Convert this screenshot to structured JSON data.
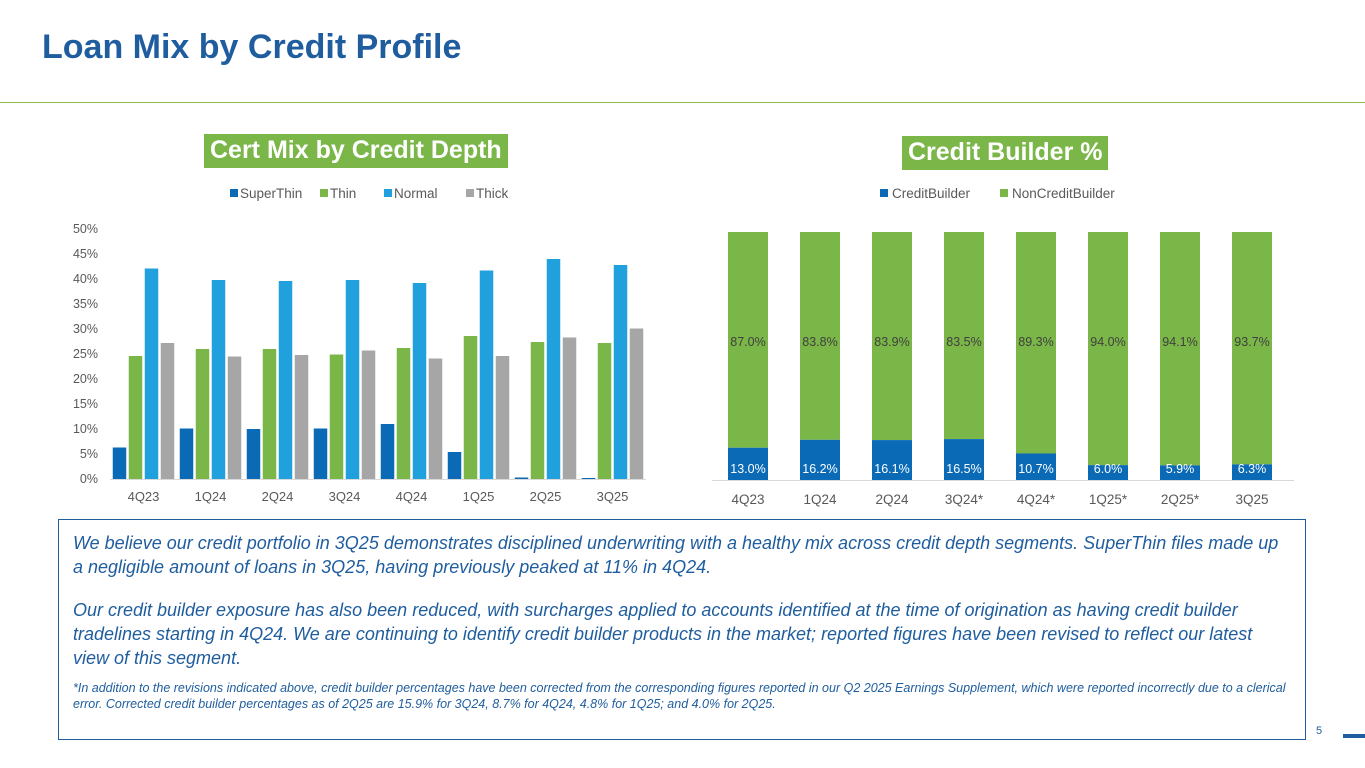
{
  "page": {
    "title": "Loan Mix by Credit Profile",
    "page_number": "5"
  },
  "badges": {
    "left": "Cert Mix by Credit Depth",
    "right": "Credit Builder %"
  },
  "colors": {
    "title": "#1f5d9e",
    "badge_bg": "#7ab648",
    "superthin": "#0a6ab6",
    "thin": "#7ab648",
    "normal": "#21a0de",
    "thick": "#a6a6a6",
    "creditbuilder": "#0a6ab6",
    "noncreditbuilder": "#7ab648"
  },
  "chart_data": [
    {
      "type": "bar",
      "title": "Cert Mix by Credit Depth",
      "categories": [
        "4Q23",
        "1Q24",
        "2Q24",
        "3Q24",
        "4Q24",
        "1Q25",
        "2Q25",
        "3Q25"
      ],
      "series": [
        {
          "name": "SuperThin",
          "values": [
            6.3,
            10.1,
            10.0,
            10.1,
            11.0,
            5.4,
            0.3,
            0.2
          ]
        },
        {
          "name": "Thin",
          "values": [
            24.6,
            26.0,
            26.0,
            24.9,
            26.2,
            28.6,
            27.4,
            27.2
          ]
        },
        {
          "name": "Normal",
          "values": [
            42.1,
            39.8,
            39.6,
            39.8,
            39.2,
            41.7,
            44.0,
            42.8
          ]
        },
        {
          "name": "Thick",
          "values": [
            27.2,
            24.5,
            24.8,
            25.7,
            24.1,
            24.6,
            28.3,
            30.1
          ]
        }
      ],
      "yticks": [
        "0%",
        "5%",
        "10%",
        "15%",
        "20%",
        "25%",
        "30%",
        "35%",
        "40%",
        "45%",
        "50%"
      ],
      "ylim": [
        0,
        50
      ],
      "legend": "top",
      "xlabel": "",
      "ylabel": ""
    },
    {
      "type": "stacked_bar",
      "title": "Credit Builder %",
      "categories": [
        "4Q23",
        "1Q24",
        "2Q24",
        "3Q24*",
        "4Q24*",
        "1Q25*",
        "2Q25*",
        "3Q25"
      ],
      "series": [
        {
          "name": "CreditBuilder",
          "values": [
            13.0,
            16.2,
            16.1,
            16.5,
            10.7,
            6.0,
            5.9,
            6.3
          ],
          "labels": [
            "13.0%",
            "16.2%",
            "16.1%",
            "16.5%",
            "10.7%",
            "6.0%",
            "5.9%",
            "6.3%"
          ]
        },
        {
          "name": "NonCreditBuilder",
          "values": [
            87.0,
            83.8,
            83.9,
            83.5,
            89.3,
            94.0,
            94.1,
            93.7
          ],
          "labels": [
            "87.0%",
            "83.8%",
            "83.9%",
            "83.5%",
            "89.3%",
            "94.0%",
            "94.1%",
            "93.7%"
          ]
        }
      ],
      "ylim": [
        0,
        100
      ],
      "legend": "top"
    }
  ],
  "textbox": {
    "p1": "We believe our credit portfolio in 3Q25 demonstrates disciplined underwriting with a healthy mix across credit depth segments. SuperThin files made up a negligible amount of loans in 3Q25, having previously peaked at 11% in 4Q24.",
    "p2": "Our credit builder exposure has also been reduced, with surcharges applied to accounts identified at the time of origination as having credit builder tradelines starting in 4Q24. We are continuing to identify credit builder products in the market; reported figures have been revised to reflect our latest view of this segment.",
    "footnote": "*In addition to the revisions indicated above, credit builder percentages have been corrected from the corresponding figures reported in our Q2 2025 Earnings Supplement, which were reported incorrectly due to a clerical error. Corrected credit builder percentages as of 2Q25 are 15.9% for 3Q24, 8.7% for 4Q24, 4.8% for 1Q25; and 4.0% for 2Q25."
  }
}
